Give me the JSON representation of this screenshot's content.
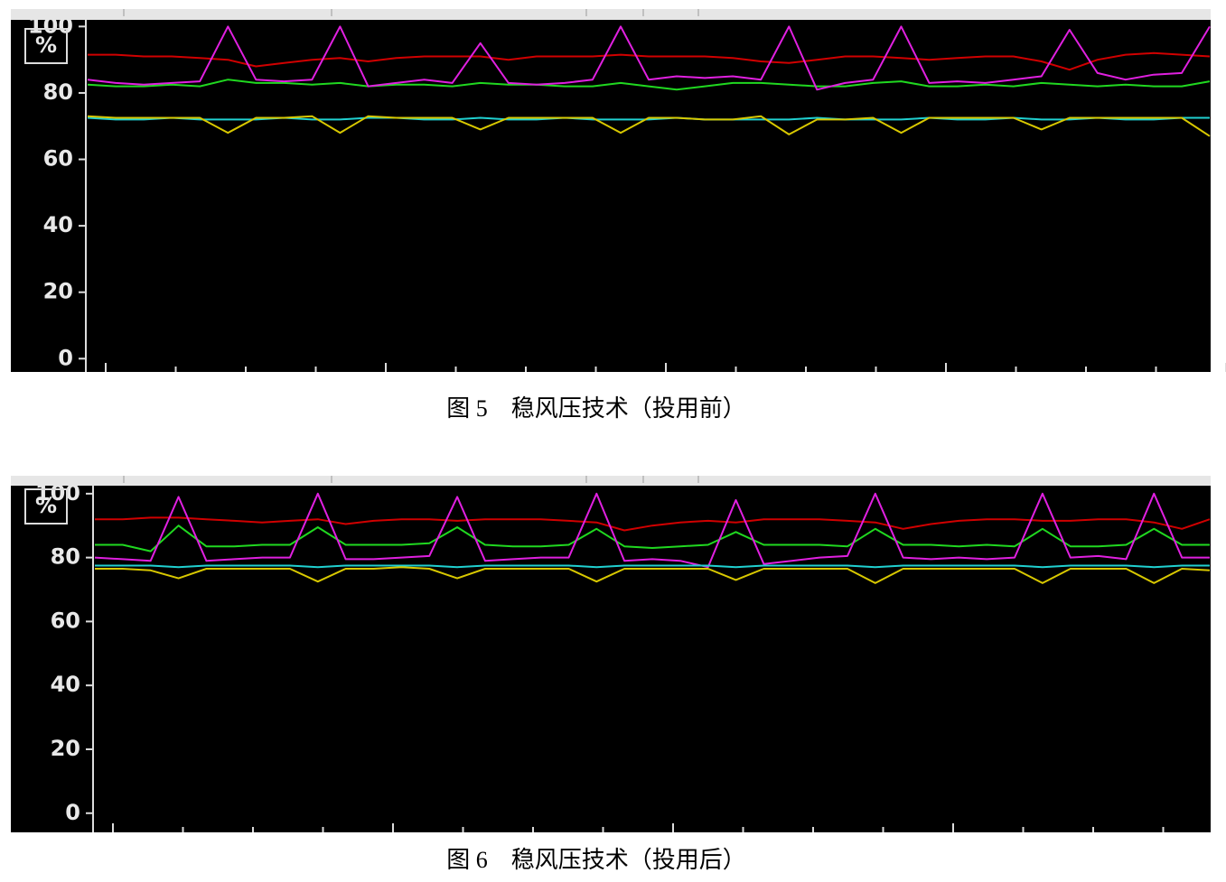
{
  "chart_data": [
    {
      "type": "line",
      "unit_label": "%",
      "caption": "图 5　稳风压技术（投用前）",
      "categories": [
        null,
        null,
        null,
        null,
        null,
        null,
        null,
        null,
        null,
        null,
        null,
        null,
        null,
        null,
        null,
        null,
        null,
        null,
        null,
        null,
        null,
        null,
        null,
        null,
        null,
        null,
        null,
        null,
        null,
        null,
        null,
        null,
        null,
        null,
        null,
        null,
        null,
        null,
        null,
        null,
        null
      ],
      "ylim": [
        -4,
        102
      ],
      "yticks": [
        0,
        20,
        40,
        60,
        80,
        100
      ],
      "grid": false,
      "series": [
        {
          "color": "#d00000",
          "values": [
            91.5,
            91.5,
            91,
            91,
            90.5,
            90,
            88,
            89,
            90,
            90.5,
            89.5,
            90.5,
            91,
            91,
            91,
            90,
            91,
            91,
            91,
            91.5,
            91,
            91,
            91,
            90.5,
            89.5,
            89,
            90,
            91,
            91,
            90.5,
            90,
            90.5,
            91,
            91,
            89.5,
            87,
            90,
            91.5,
            92,
            91.5,
            91
          ]
        },
        {
          "color": "#20d820",
          "values": [
            82.5,
            82,
            82,
            82.5,
            82,
            84,
            83,
            83,
            82.5,
            83,
            82,
            82.5,
            82.5,
            82,
            83,
            82.5,
            82.5,
            82,
            82,
            83,
            82,
            81,
            82,
            83,
            83,
            82.5,
            82,
            82,
            83,
            83.5,
            82,
            82,
            82.5,
            82,
            83,
            82.5,
            82,
            82.5,
            82,
            82,
            83.5
          ]
        },
        {
          "color": "#e020e0",
          "values": [
            84,
            83,
            82.5,
            83,
            83.5,
            100,
            84,
            83.5,
            84,
            100,
            82,
            83,
            84,
            83,
            95,
            83,
            82.5,
            83,
            84,
            100,
            84,
            85,
            84.5,
            85,
            84,
            100,
            81,
            83,
            84,
            100,
            83,
            83.5,
            83,
            84,
            85,
            99,
            86,
            84,
            85.5,
            86,
            100
          ]
        },
        {
          "color": "#20d0d0",
          "values": [
            72.5,
            72,
            72,
            72.5,
            72,
            72,
            72,
            72.5,
            72,
            72,
            72.5,
            72.5,
            72,
            72,
            72.5,
            72,
            72,
            72.5,
            72,
            72,
            72,
            72.5,
            72,
            72,
            72,
            72,
            72.5,
            72,
            72,
            72,
            72.5,
            72,
            72,
            72.5,
            72,
            72,
            72.5,
            72,
            72,
            72.5,
            72.5
          ]
        },
        {
          "color": "#d8c800",
          "values": [
            73,
            72.5,
            72.5,
            72.5,
            72.5,
            68,
            72.5,
            72.5,
            73,
            68,
            73,
            72.5,
            72.5,
            72.5,
            69,
            72.5,
            72.5,
            72.5,
            72.5,
            68,
            72.5,
            72.5,
            72,
            72,
            73,
            67.5,
            72,
            72,
            72.5,
            68,
            72.5,
            72.5,
            72.5,
            72.5,
            69,
            72.5,
            72.5,
            72.5,
            72.5,
            72.5,
            67
          ]
        }
      ]
    },
    {
      "type": "line",
      "unit_label": "%",
      "caption": "图 6　稳风压技术（投用后）",
      "categories": [
        null,
        null,
        null,
        null,
        null,
        null,
        null,
        null,
        null,
        null,
        null,
        null,
        null,
        null,
        null,
        null,
        null,
        null,
        null,
        null,
        null,
        null,
        null,
        null,
        null,
        null,
        null,
        null,
        null,
        null,
        null,
        null,
        null,
        null,
        null,
        null,
        null,
        null,
        null,
        null,
        null
      ],
      "ylim": [
        -6,
        102.5
      ],
      "yticks": [
        0,
        20,
        40,
        60,
        80,
        100
      ],
      "grid": false,
      "series": [
        {
          "color": "#d00000",
          "values": [
            92,
            92,
            92.5,
            92.5,
            92,
            91.5,
            91,
            91.5,
            92,
            90.5,
            91.5,
            92,
            92,
            91.5,
            92,
            92,
            92,
            91.5,
            91,
            88.5,
            90,
            91,
            91.5,
            91,
            92,
            92,
            92,
            91.5,
            91,
            89,
            90.5,
            91.5,
            92,
            92,
            91.5,
            91.5,
            92,
            92,
            91,
            89,
            92
          ]
        },
        {
          "color": "#20d820",
          "values": [
            84,
            84,
            82,
            90,
            83.5,
            83.5,
            84,
            84,
            89.5,
            84,
            84,
            84,
            84.5,
            89.5,
            84,
            83.5,
            83.5,
            84,
            89,
            83.5,
            83,
            83.5,
            84,
            88,
            84,
            84,
            84,
            83.5,
            89,
            84,
            84,
            83.5,
            84,
            83.5,
            89,
            83.5,
            83.5,
            84,
            89,
            84,
            84
          ]
        },
        {
          "color": "#e020e0",
          "values": [
            80,
            79.5,
            79,
            99,
            79,
            79.5,
            80,
            80,
            100,
            79.5,
            79.5,
            80,
            80.5,
            99,
            79,
            79.5,
            80,
            80,
            100,
            79,
            79.5,
            79,
            77,
            98,
            78,
            79,
            80,
            80.5,
            100,
            80,
            79.5,
            80,
            79.5,
            80,
            100,
            80,
            80.5,
            79.5,
            100,
            80,
            80
          ]
        },
        {
          "color": "#20d0d0",
          "values": [
            77.5,
            77.5,
            77.5,
            77,
            77.5,
            77.5,
            77.5,
            77.5,
            77,
            77.5,
            77.5,
            77.5,
            77.5,
            77,
            77.5,
            77.5,
            77.5,
            77.5,
            77,
            77.5,
            77.5,
            77.5,
            77.5,
            77,
            77.5,
            77.5,
            77.5,
            77.5,
            77,
            77.5,
            77.5,
            77.5,
            77.5,
            77.5,
            77,
            77.5,
            77.5,
            77.5,
            77,
            77.5,
            77.5
          ]
        },
        {
          "color": "#d8c800",
          "values": [
            76.5,
            76.5,
            76,
            73.5,
            76.5,
            76.5,
            76.5,
            76.5,
            72.5,
            76.5,
            76.5,
            77,
            76.5,
            73.5,
            76.5,
            76.5,
            76.5,
            76.5,
            72.5,
            76.5,
            76.5,
            76.5,
            76.5,
            73,
            76.5,
            76.5,
            76.5,
            76.5,
            72,
            76.5,
            76.5,
            76.5,
            76.5,
            76.5,
            72,
            76.5,
            76.5,
            76.5,
            72,
            76.5,
            76
          ]
        }
      ]
    }
  ]
}
